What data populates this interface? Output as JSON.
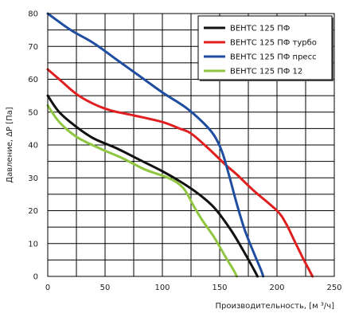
{
  "chart_data": {
    "type": "line",
    "xlabel": "Производительность, [м ³/ч]",
    "ylabel": "Давление, ΔР [Па]",
    "xlim": [
      0,
      250
    ],
    "ylim": [
      0,
      80
    ],
    "x_ticks": [
      0,
      50,
      100,
      150,
      200,
      250
    ],
    "y_ticks": [
      0,
      10,
      20,
      30,
      40,
      50,
      60,
      70,
      80
    ],
    "grid": true,
    "legend_position": "top-right",
    "series": [
      {
        "name": "ВЕНТС 125 ПФ",
        "color": "#111111",
        "points": [
          [
            0,
            55
          ],
          [
            10,
            50
          ],
          [
            25,
            45.5
          ],
          [
            40,
            42
          ],
          [
            60,
            39
          ],
          [
            80,
            35.5
          ],
          [
            100,
            32
          ],
          [
            115,
            29
          ],
          [
            130,
            25.5
          ],
          [
            145,
            21
          ],
          [
            160,
            14
          ],
          [
            172,
            7
          ],
          [
            180,
            2
          ],
          [
            183,
            0
          ]
        ]
      },
      {
        "name": "ВЕНТС 125 ПФ турбо",
        "color": "#e02020",
        "points": [
          [
            0,
            63
          ],
          [
            10,
            60
          ],
          [
            25,
            55.5
          ],
          [
            40,
            52.5
          ],
          [
            55,
            50.5
          ],
          [
            75,
            49
          ],
          [
            100,
            47
          ],
          [
            115,
            45
          ],
          [
            125,
            43.5
          ],
          [
            140,
            39
          ],
          [
            155,
            34
          ],
          [
            165,
            31
          ],
          [
            180,
            26
          ],
          [
            200,
            20
          ],
          [
            208,
            16
          ],
          [
            215,
            11
          ],
          [
            222,
            6
          ],
          [
            228,
            2
          ],
          [
            231,
            0
          ]
        ]
      },
      {
        "name": "ВЕНТС 125 ПФ пресс",
        "color": "#1f4ea1",
        "points": [
          [
            0,
            80
          ],
          [
            20,
            75
          ],
          [
            40,
            71
          ],
          [
            60,
            66
          ],
          [
            80,
            61
          ],
          [
            100,
            56
          ],
          [
            120,
            51.5
          ],
          [
            135,
            47
          ],
          [
            145,
            43
          ],
          [
            152,
            38
          ],
          [
            158,
            31
          ],
          [
            165,
            22
          ],
          [
            172,
            14
          ],
          [
            180,
            7
          ],
          [
            186,
            2
          ],
          [
            188,
            0
          ]
        ]
      },
      {
        "name": "ВЕНТС 125 ПФ 12",
        "color": "#8fc640",
        "points": [
          [
            0,
            52
          ],
          [
            10,
            47
          ],
          [
            25,
            42.5
          ],
          [
            45,
            39
          ],
          [
            65,
            36
          ],
          [
            85,
            32.5
          ],
          [
            105,
            30
          ],
          [
            118,
            27
          ],
          [
            128,
            21
          ],
          [
            135,
            17
          ],
          [
            145,
            12
          ],
          [
            155,
            6
          ],
          [
            162,
            2
          ],
          [
            165,
            0
          ]
        ]
      }
    ]
  }
}
